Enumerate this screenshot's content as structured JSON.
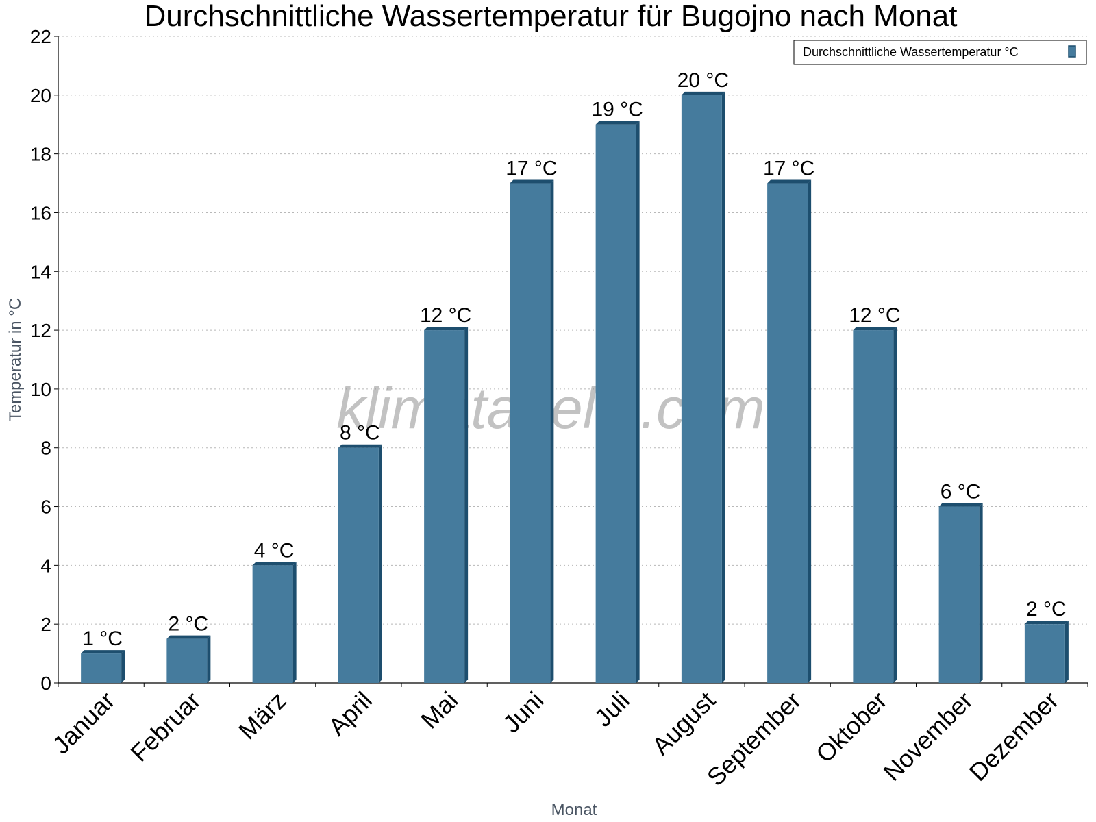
{
  "chart_data": {
    "type": "bar",
    "title": "Durchschnittliche Wassertemperatur für Bugojno nach Monat",
    "xlabel": "Monat",
    "ylabel": "Temperatur in °C",
    "ylim": [
      0,
      22
    ],
    "yticks": [
      0,
      2,
      4,
      6,
      8,
      10,
      12,
      14,
      16,
      18,
      20,
      22
    ],
    "grid": true,
    "legend_position": "top-right",
    "categories": [
      "Januar",
      "Februar",
      "März",
      "April",
      "Mai",
      "Juni",
      "Juli",
      "August",
      "September",
      "Oktober",
      "November",
      "Dezember"
    ],
    "series": [
      {
        "name": "Durchschnittliche Wassertemperatur °C",
        "values": [
          1,
          1.5,
          4,
          8,
          12,
          17,
          19,
          20,
          17,
          12,
          6,
          2
        ],
        "labels": [
          "1 °C",
          "2 °C",
          "4 °C",
          "8 °C",
          "12 °C",
          "17 °C",
          "19 °C",
          "20 °C",
          "17 °C",
          "12 °C",
          "6 °C",
          "2 °C"
        ],
        "color": "#457b9d",
        "edge_color": "#1d4e6e"
      }
    ],
    "watermark": "klimatabelle.com"
  }
}
